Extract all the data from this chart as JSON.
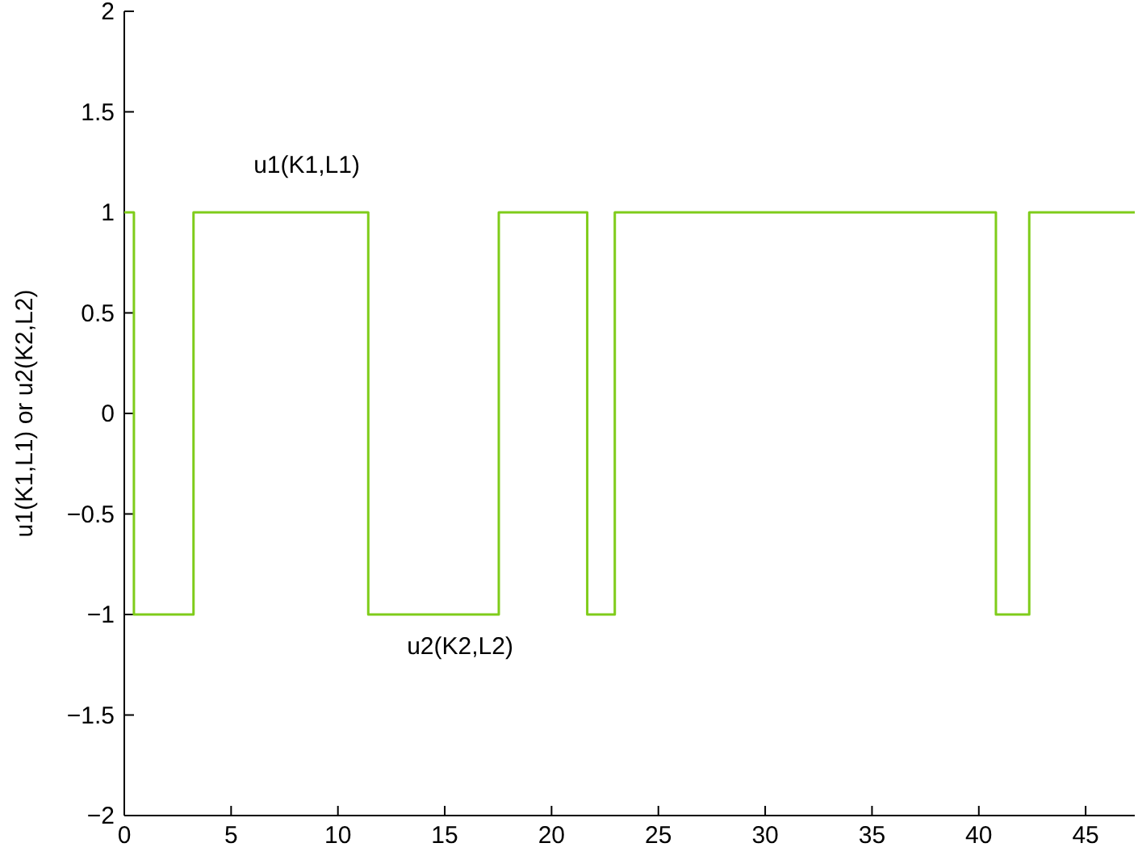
{
  "chart_data": {
    "type": "step",
    "ylabel": "u1(K1,L1) or u2(K2,L2)",
    "x": [
      0,
      0.45,
      3.24,
      11.42,
      17.53,
      21.67,
      22.96,
      40.8,
      42.36,
      47.3
    ],
    "series": [
      {
        "color": "#7fcc1a",
        "values": [
          1,
          -1,
          1,
          -1,
          1,
          -1,
          1,
          -1,
          1,
          1
        ]
      }
    ],
    "xlim": [
      0,
      47.3
    ],
    "xticks": [
      0,
      5,
      10,
      15,
      20,
      25,
      30,
      35,
      40,
      45
    ],
    "ylim": [
      -2,
      2
    ],
    "yticks": [
      {
        "value": -2,
        "label": "−2"
      },
      {
        "value": -1.5,
        "label": "−1.5"
      },
      {
        "value": -1,
        "label": "−1"
      },
      {
        "value": -0.5,
        "label": "−0.5"
      },
      0,
      0.5,
      1,
      1.5,
      2
    ],
    "annotations": [
      "u1(K1,L1)",
      "u2(K2,L2)"
    ],
    "line_style": "solid",
    "marker": "none"
  }
}
